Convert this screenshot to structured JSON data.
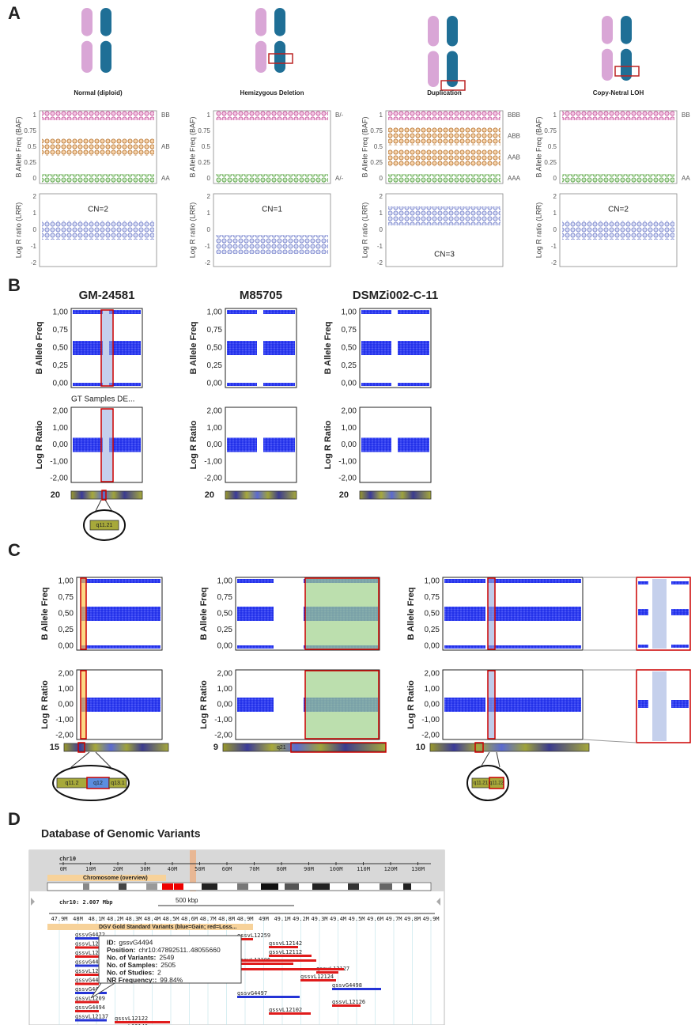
{
  "panel_a": {
    "label": "A",
    "baf_axis": "B Allele Freq (BAF)",
    "lrr_axis": "Log R ratio (LRR)",
    "baf_ticks": [
      "1",
      "0.75",
      "0.5",
      "0.25",
      "0"
    ],
    "lrr_ticks": [
      "2",
      "1",
      "0",
      "-1",
      "-2"
    ],
    "columns": [
      {
        "title": "Normal (diploid)",
        "baf_labels": [
          "BB",
          "AB",
          "AA"
        ],
        "cn": "CN=2"
      },
      {
        "title": "Hemizygous Deletion",
        "baf_labels": [
          "B/-",
          "A/-"
        ],
        "cn": "CN=1"
      },
      {
        "title": "Duplication",
        "baf_labels": [
          "BBB",
          "ABB",
          "AAB",
          "AAA"
        ],
        "cn": "CN=3"
      },
      {
        "title": "Copy-Netral LOH",
        "baf_labels": [
          "BB",
          "AA"
        ],
        "cn": "CN=2"
      }
    ]
  },
  "panel_b": {
    "label": "B",
    "samples": [
      "GM-24581",
      "M85705",
      "DSMZi002-C-11"
    ],
    "baf_axis": "B Allele Freq",
    "lrr_axis": "Log R Ratio",
    "baf_ticks": [
      "1,00",
      "0,75",
      "0,50",
      "0,25",
      "0,00"
    ],
    "lrr_ticks": [
      "2,00",
      "1,00",
      "0,00",
      "-1,00",
      "-2,00"
    ],
    "annotation": "GT Samples DE...",
    "chromosome": "20",
    "band": "q11.21"
  },
  "panel_c": {
    "label": "C",
    "baf_axis": "B Allele Freq",
    "lrr_axis": "Log R Ratio",
    "baf_ticks": [
      "1,00",
      "0,75",
      "0,50",
      "0,25",
      "0,00"
    ],
    "lrr_ticks": [
      "2,00",
      "1,00",
      "0,00",
      "-1,00",
      "-2,00"
    ],
    "chromosomes": [
      "15",
      "9",
      "10"
    ],
    "bands_15": [
      "q11.2",
      "q12",
      "q13.1"
    ],
    "band_9": "q21",
    "bands_10": [
      "q11.21",
      "q11.22"
    ]
  },
  "panel_d": {
    "label": "D",
    "title": "Database of Genomic Variants",
    "chr": "chr10",
    "overview_track": "Chromosome (overview)",
    "overview_ticks": [
      "0M",
      "10M",
      "20M",
      "30M",
      "40M",
      "50M",
      "60M",
      "70M",
      "80M",
      "90M",
      "100M",
      "110M",
      "120M",
      "130M"
    ],
    "region": "chr10: 2.007 Mbp",
    "scale": "500 kbp",
    "detail_ticks": [
      "47.9M",
      "48M",
      "48.1M",
      "48.2M",
      "48.3M",
      "48.4M",
      "48.5M",
      "48.6M",
      "48.7M",
      "48.8M",
      "48.9M",
      "49M",
      "49.1M",
      "49.2M",
      "49.3M",
      "49.4M",
      "49.5M",
      "49.6M",
      "49.7M",
      "49.8M",
      "49.9M"
    ],
    "variant_track": "DGV Gold Standard Variants (blue=Gain; red=Loss...",
    "variants_left": [
      "gssvG4472",
      "gssvL1208",
      "gssvL1208",
      "gssvG4474",
      "gssvL1208",
      "gssvG4482",
      "gssvG4477",
      "gssvL1209",
      "gssvG4494",
      "gssvL12137"
    ],
    "variants_right": [
      "gssvL12259",
      "gssvL12142",
      "gssvL12112",
      "gssvL12106",
      "gssvL12127",
      "gssvL12124",
      "gssvG4498",
      "gssvG4497",
      "gssvL12126",
      "gssvL12102",
      "gssvL12122",
      "gssvL12140"
    ],
    "tooltip": [
      {
        "key": "ID:",
        "value": "gssvG4494"
      },
      {
        "key": "Position:",
        "value": "chr10:47892511..48055660"
      },
      {
        "key": "No. of Variants:",
        "value": "2549"
      },
      {
        "key": "No. of Samples:",
        "value": "2505"
      },
      {
        "key": "No. of Studies:",
        "value": "2"
      },
      {
        "key": "NR Frequency::",
        "value": "99.84%"
      }
    ]
  }
}
